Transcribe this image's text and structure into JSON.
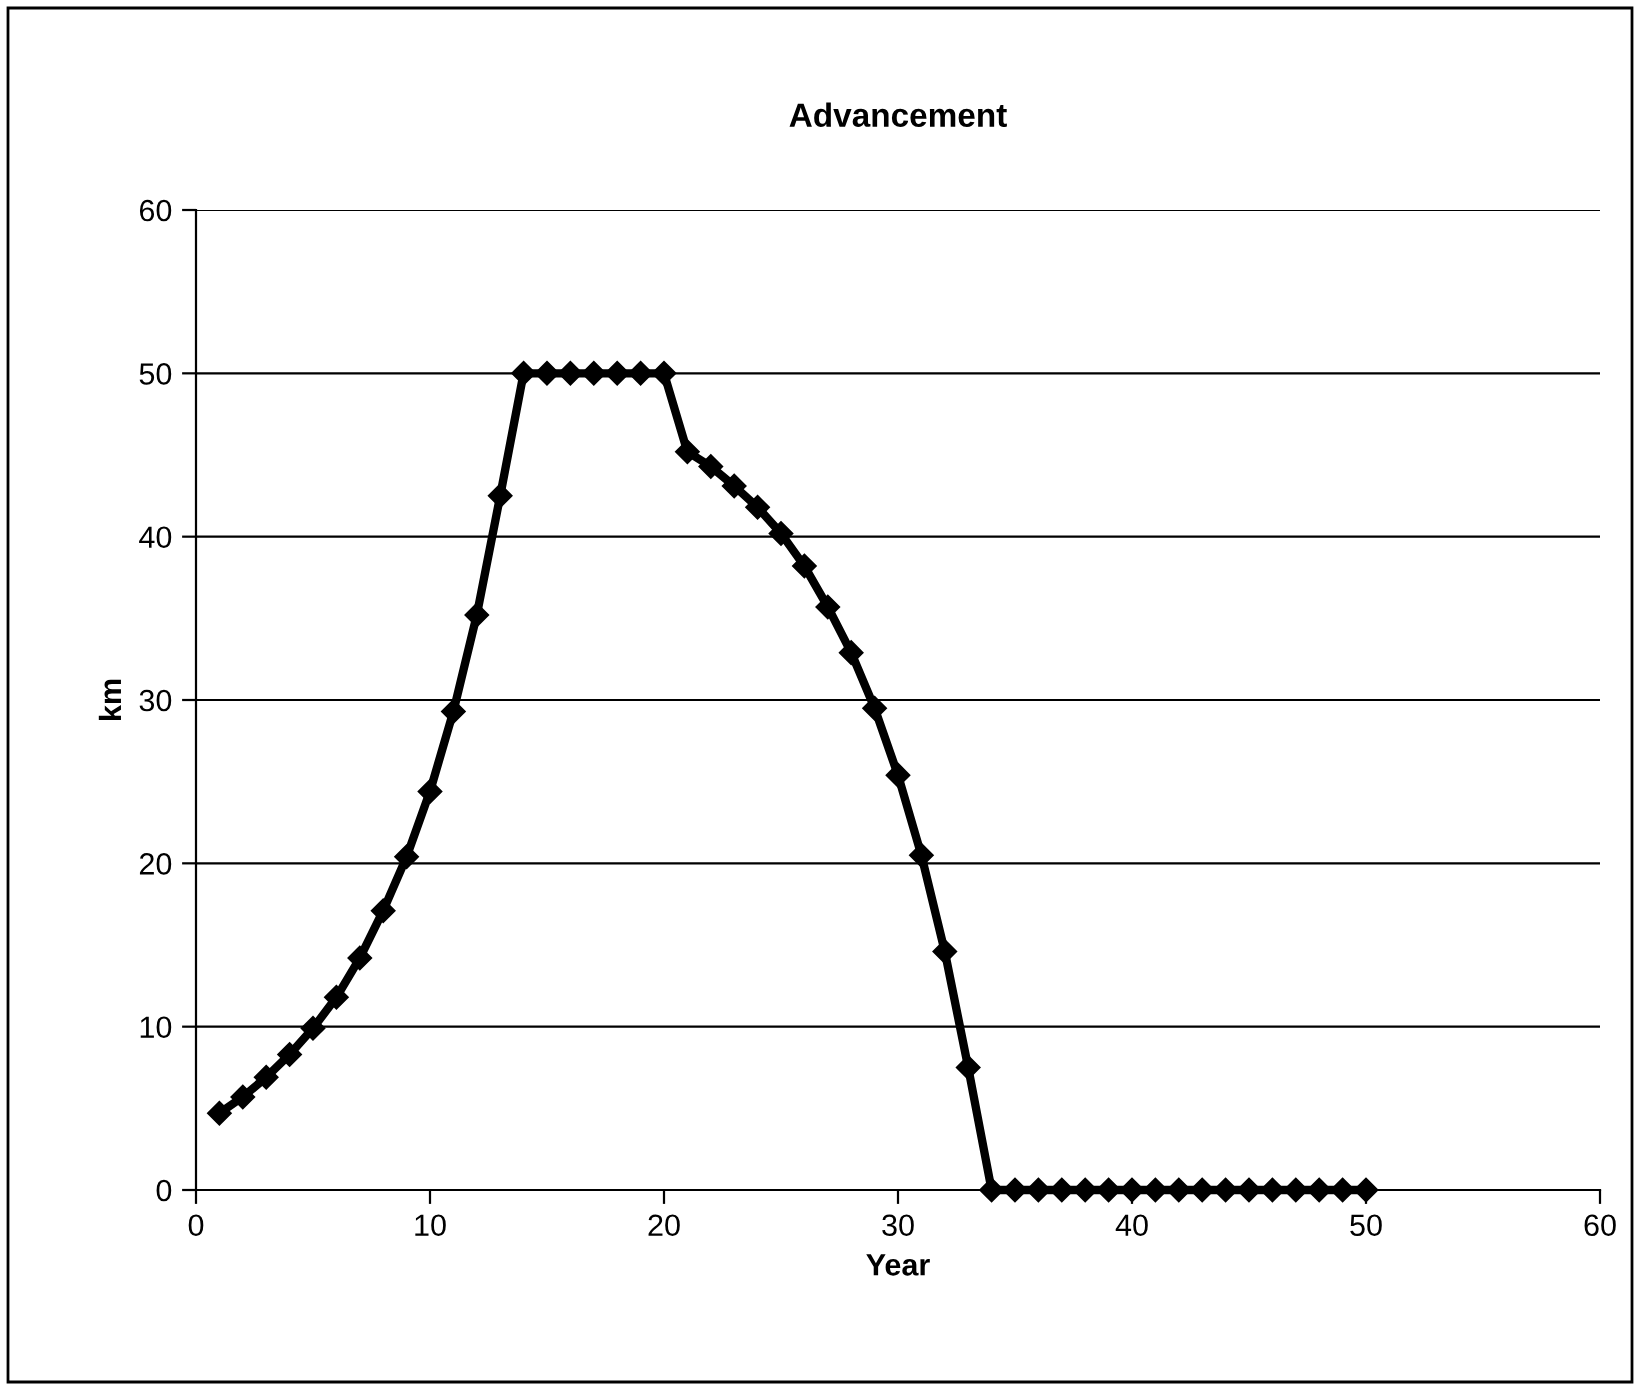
{
  "chart_data": {
    "type": "line",
    "title": "Advancement",
    "xlabel": "Year",
    "ylabel": "km",
    "x": [
      1,
      2,
      3,
      4,
      5,
      6,
      7,
      8,
      9,
      10,
      11,
      12,
      13,
      14,
      15,
      16,
      17,
      18,
      19,
      20,
      21,
      22,
      23,
      24,
      25,
      26,
      27,
      28,
      29,
      30,
      31,
      32,
      33,
      34,
      35,
      36,
      37,
      38,
      39,
      40,
      41,
      42,
      43,
      44,
      45,
      46,
      47,
      48,
      49,
      50
    ],
    "series": [
      {
        "color": "#000000",
        "values": [
          4.7,
          5.7,
          6.9,
          8.3,
          9.9,
          11.8,
          14.2,
          17.1,
          20.4,
          24.4,
          29.3,
          35.2,
          42.5,
          50,
          50,
          50,
          50,
          50,
          50,
          50,
          45.2,
          44.3,
          43.1,
          41.8,
          40.2,
          38.2,
          35.7,
          32.9,
          29.5,
          25.4,
          20.5,
          14.6,
          7.5,
          0,
          0,
          0,
          0,
          0,
          0,
          0,
          0,
          0,
          0,
          0,
          0,
          0,
          0,
          0,
          0,
          0
        ]
      }
    ],
    "xlim": [
      0,
      60
    ],
    "xticks": [
      0,
      10,
      20,
      30,
      40,
      50,
      60
    ],
    "ylim": [
      0,
      60
    ],
    "yticks": [
      0,
      10,
      20,
      30,
      40,
      50,
      60
    ],
    "grid": "y",
    "marker": "diamond",
    "line_style": "solid",
    "legend": false
  }
}
